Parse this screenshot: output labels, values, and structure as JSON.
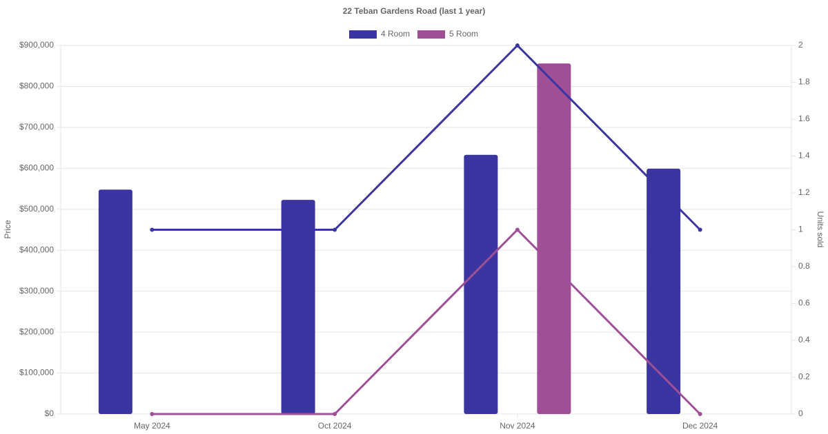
{
  "chart_data": {
    "type": "bar",
    "title": "22 Teban Gardens Road (last 1 year)",
    "categories": [
      "May 2024",
      "Oct 2024",
      "Nov 2024",
      "Dec 2024"
    ],
    "series": [
      {
        "name": "4 Room",
        "color": "#3a35a0",
        "values": [
          548000,
          523000,
          633000,
          599000
        ],
        "units_sold": [
          1,
          1,
          2,
          1
        ]
      },
      {
        "name": "5 Room",
        "color": "#9e4f96",
        "values": [
          null,
          null,
          856000,
          null
        ],
        "units_sold": [
          0,
          0,
          1,
          0
        ]
      }
    ],
    "y_label": "Price",
    "y2_label": "Units sold",
    "ylim": [
      0,
      900000
    ],
    "yticks": [
      {
        "value": 0,
        "label": "$0"
      },
      {
        "value": 100000,
        "label": "$100,000"
      },
      {
        "value": 200000,
        "label": "$200,000"
      },
      {
        "value": 300000,
        "label": "$300,000"
      },
      {
        "value": 400000,
        "label": "$400,000"
      },
      {
        "value": 500000,
        "label": "$500,000"
      },
      {
        "value": 600000,
        "label": "$600,000"
      },
      {
        "value": 700000,
        "label": "$700,000"
      },
      {
        "value": 800000,
        "label": "$800,000"
      },
      {
        "value": 900000,
        "label": "$900,000"
      }
    ],
    "y2lim": [
      0,
      2
    ],
    "y2ticks": [
      0,
      0.2,
      0.4,
      0.6,
      0.8,
      1,
      1.2,
      1.4,
      1.6,
      1.8,
      2
    ],
    "grid": true,
    "legend": "top"
  }
}
